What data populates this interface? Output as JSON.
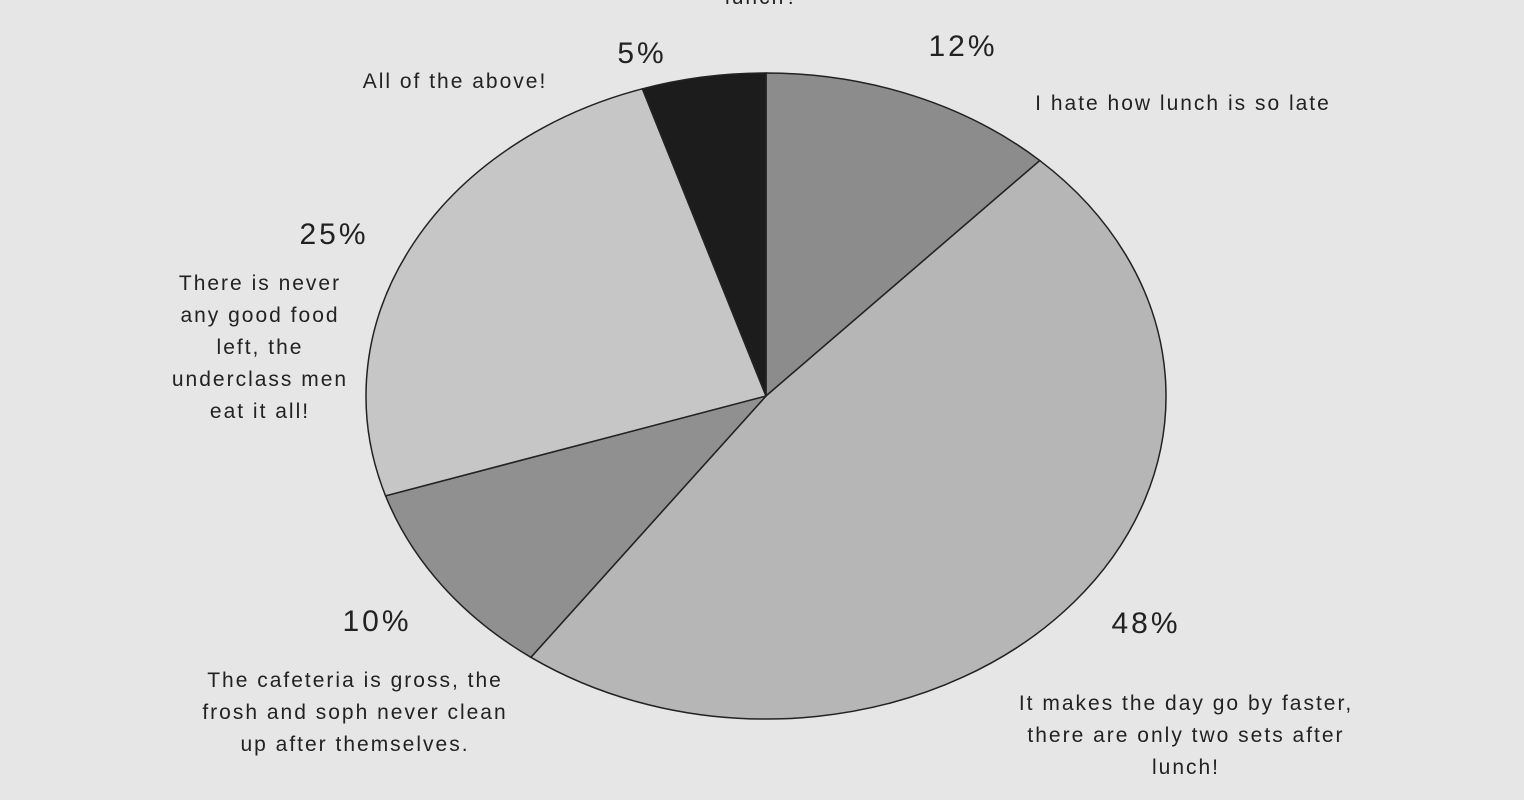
{
  "chart_data": {
    "type": "pie",
    "title": "lunch?",
    "categories": [
      "I hate how lunch is so late",
      "It makes the day go by faster, there are only two sets after lunch!",
      "The cafeteria is gross, the frosh and soph never clean up after themselves.",
      "There is never any good food left, the underclass men eat it all!",
      "All of the above!"
    ],
    "values": [
      12,
      48,
      10,
      25,
      5
    ],
    "value_labels": [
      "12%",
      "48%",
      "10%",
      "25%",
      "5%"
    ],
    "colors": [
      "#8c8c8c",
      "#b6b6b6",
      "#909090",
      "#c6c6c6",
      "#1c1c1c"
    ]
  }
}
